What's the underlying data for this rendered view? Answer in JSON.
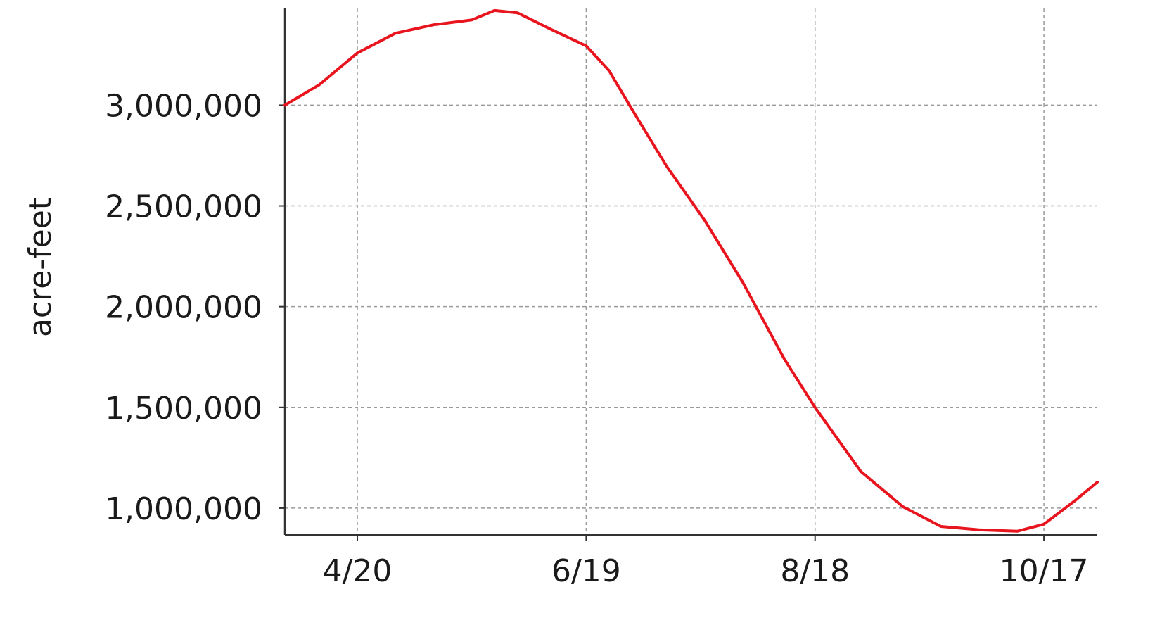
{
  "chart_data": {
    "type": "line",
    "y_label": "acre-feet",
    "x": [
      "4/1",
      "4/10",
      "4/20",
      "4/30",
      "5/10",
      "5/20",
      "5/26",
      "6/1",
      "6/10",
      "6/19",
      "6/25",
      "7/1",
      "7/10",
      "7/20",
      "7/30",
      "8/10",
      "8/18",
      "8/30",
      "9/10",
      "9/20",
      "9/30",
      "10/10",
      "10/17",
      "10/25",
      "10/31"
    ],
    "series": [
      {
        "color": "#e8141e",
        "values": [
          3000000,
          3101000,
          3259000,
          3357000,
          3399000,
          3423000,
          3470000,
          3458000,
          3374000,
          3294000,
          3171000,
          2979000,
          2699000,
          2430000,
          2122000,
          1738000,
          1500000,
          1182000,
          1007000,
          909000,
          892000,
          885000,
          920000,
          1035000,
          1129000
        ]
      }
    ],
    "xlim": [
      "4/1",
      "10/31"
    ],
    "xticks": [
      "4/20",
      "6/19",
      "8/18",
      "10/17"
    ],
    "ylim": [
      867000,
      3480000
    ],
    "yticks": [
      {
        "value": 1000000,
        "label": "1,000,000"
      },
      {
        "value": 1500000,
        "label": "1,500,000"
      },
      {
        "value": 2000000,
        "label": "2,000,000"
      },
      {
        "value": 2500000,
        "label": "2,500,000"
      },
      {
        "value": 3000000,
        "label": "3,000,000"
      }
    ],
    "grid": true
  }
}
